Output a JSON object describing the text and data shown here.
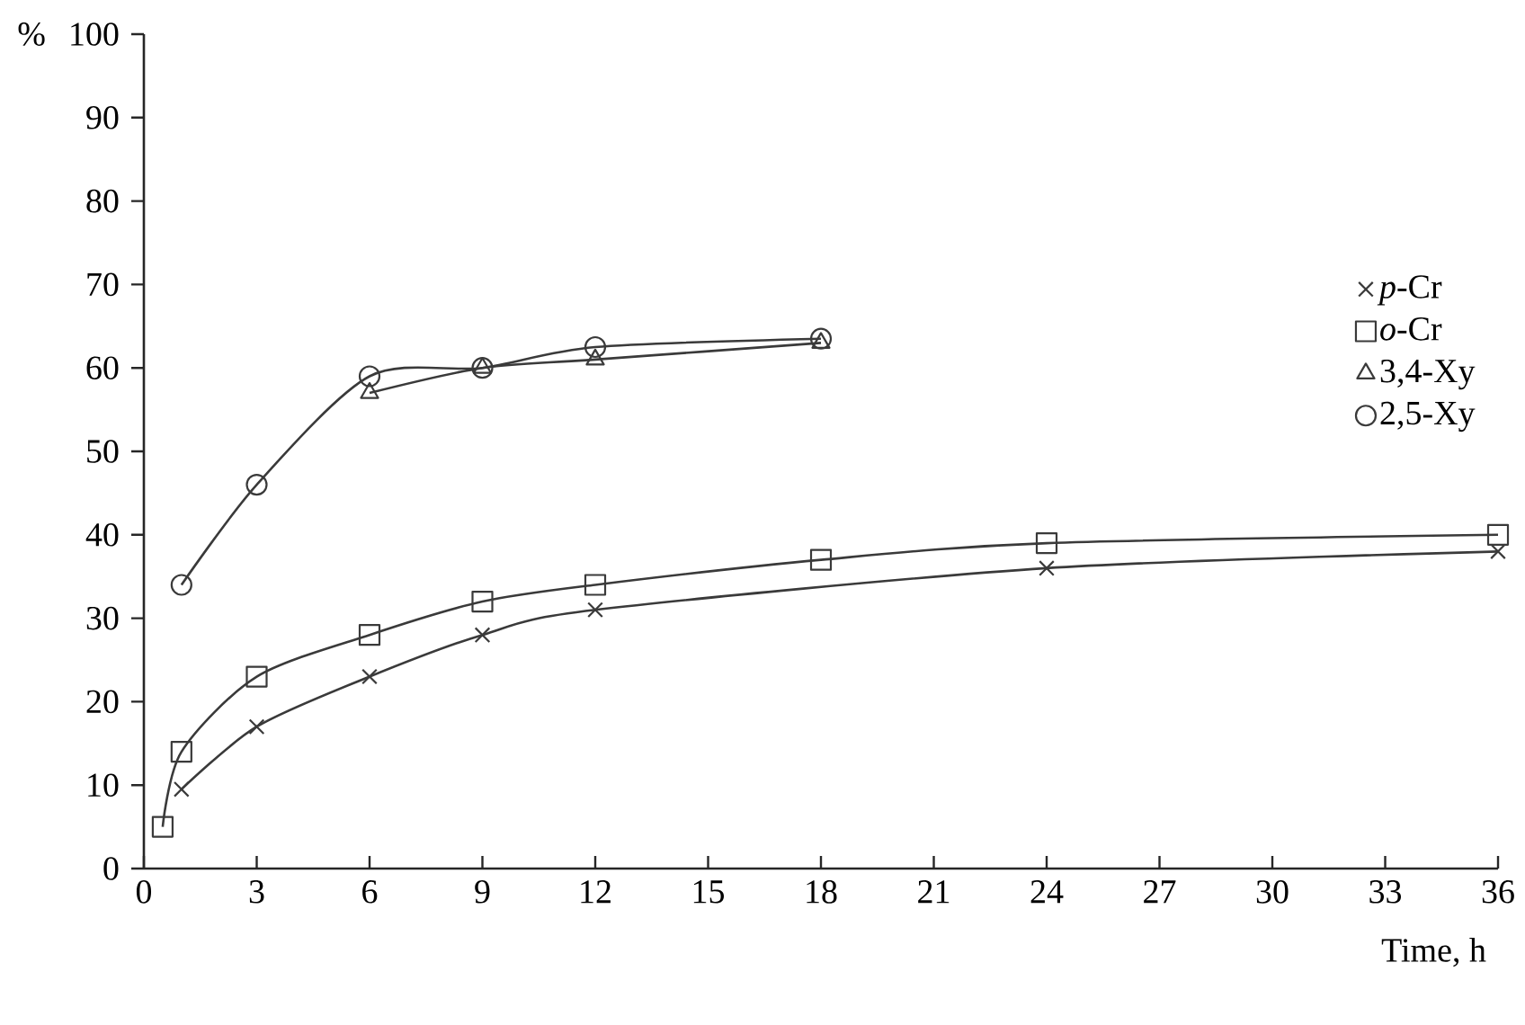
{
  "chart_data": {
    "type": "line",
    "xlabel": "Time, h",
    "ylabel": "%",
    "xlim": [
      0,
      36
    ],
    "ylim": [
      0,
      100
    ],
    "xticks": [
      0,
      3,
      6,
      9,
      12,
      15,
      18,
      21,
      24,
      27,
      30,
      33,
      36
    ],
    "yticks": [
      0,
      10,
      20,
      30,
      40,
      50,
      60,
      70,
      80,
      90,
      100
    ],
    "grid": false,
    "legend": "right",
    "line_style": "solid",
    "series": [
      {
        "name": "*p*-Cr",
        "color": "#3a3a3a",
        "marker": "cross",
        "x": [
          1,
          3,
          6,
          9,
          12,
          24,
          36
        ],
        "values": [
          9.5,
          17,
          23,
          28,
          31,
          36,
          38
        ]
      },
      {
        "name": "*o*-Cr",
        "color": "#3a3a3a",
        "marker": "square",
        "x": [
          0.5,
          1,
          3,
          6,
          9,
          12,
          18,
          24,
          36
        ],
        "values": [
          5,
          14,
          23,
          28,
          32,
          34,
          37,
          39,
          40
        ]
      },
      {
        "name": "3,4-Xy",
        "color": "#3a3a3a",
        "marker": "triangle",
        "x": [
          6,
          9,
          12,
          18
        ],
        "values": [
          57,
          60,
          61,
          63
        ]
      },
      {
        "name": "2,5-Xy",
        "color": "#3a3a3a",
        "marker": "circle",
        "x": [
          1,
          3,
          6,
          9,
          12,
          18
        ],
        "values": [
          34,
          46,
          59,
          60,
          62.5,
          63.5
        ]
      }
    ]
  }
}
